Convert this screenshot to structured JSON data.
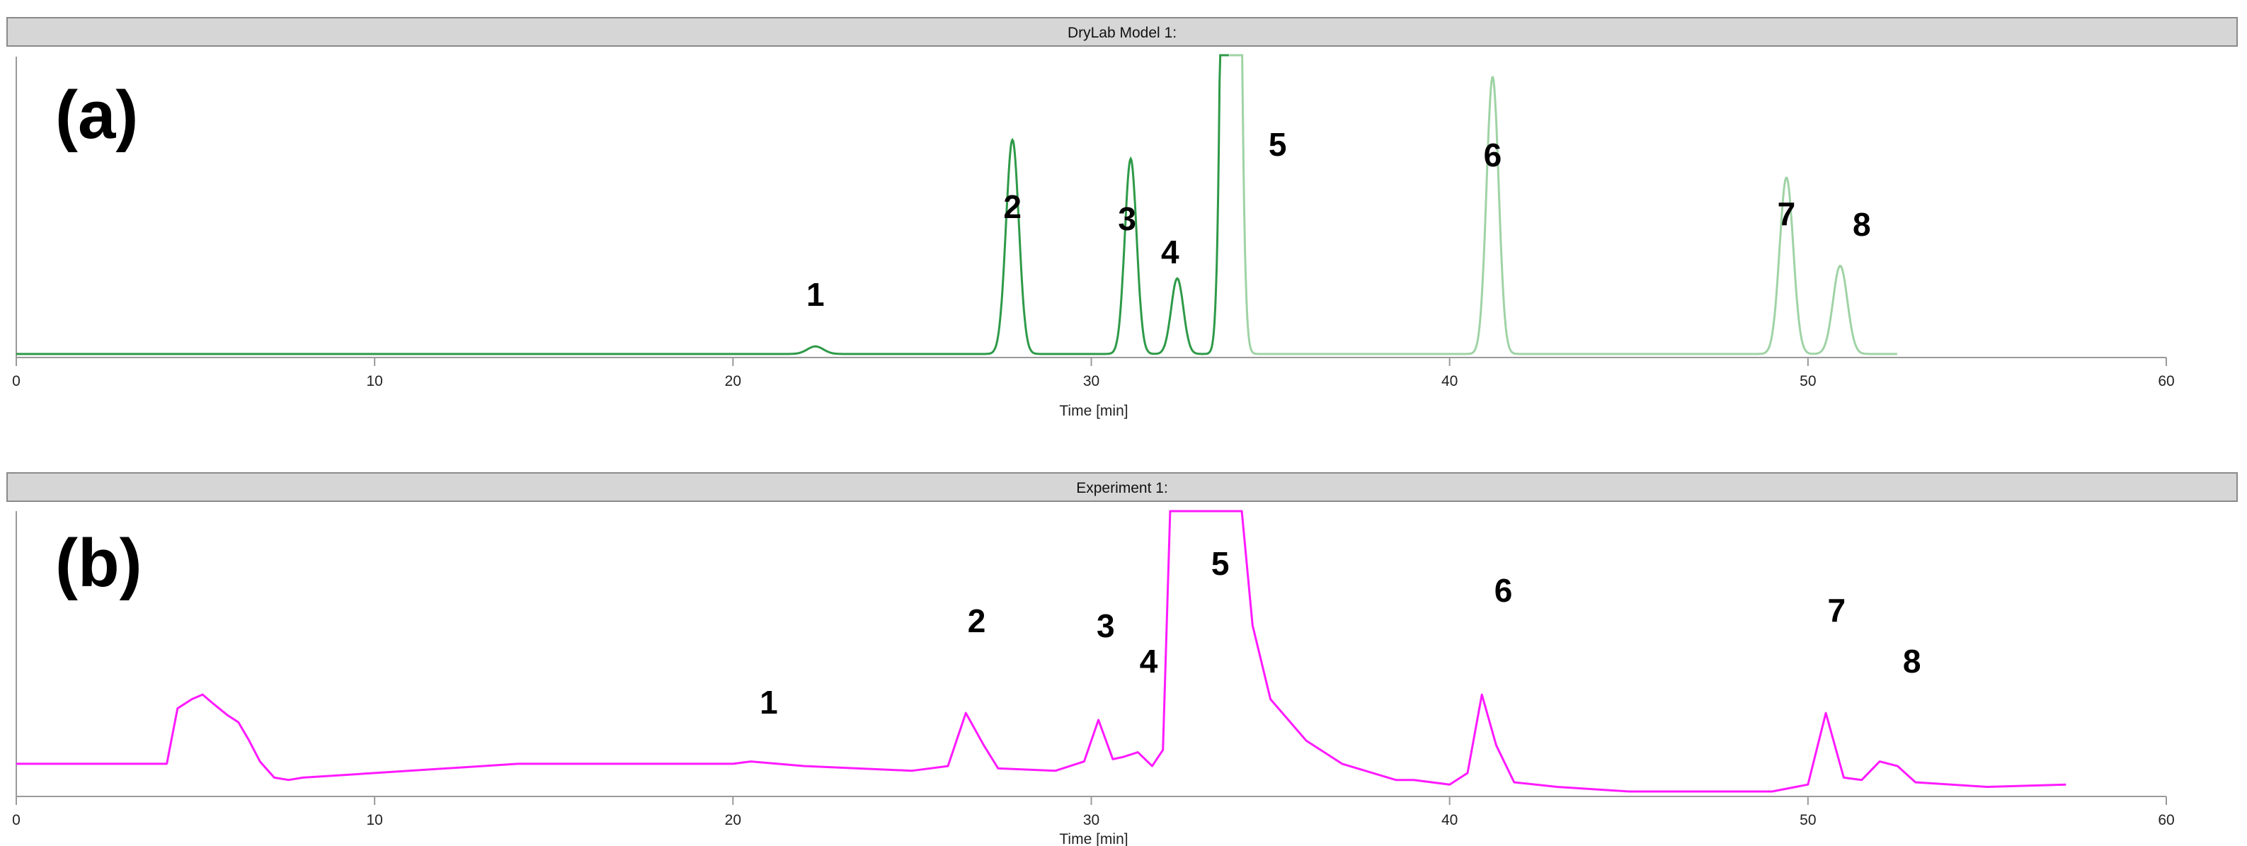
{
  "chart_data": [
    {
      "type": "line",
      "header": "DryLab Model 1:",
      "panel_tag": "(a)",
      "xlabel": "Time [min]",
      "xlim": [
        0,
        60
      ],
      "xticks": [
        0,
        10,
        20,
        30,
        40,
        50,
        60
      ],
      "grid": false,
      "legend": "none",
      "colors": {
        "model_dark": "#2e9a48",
        "model_light": "#9fd3a5"
      },
      "peaks": [
        {
          "label": "1",
          "x": 22.3,
          "height": 0.012,
          "width": 0.45,
          "label_x": 22.3
        },
        {
          "label": "2",
          "x": 27.8,
          "height": 0.34,
          "width": 0.36,
          "label_x": 27.8
        },
        {
          "label": "3",
          "x": 31.1,
          "height": 0.31,
          "width": 0.33,
          "label_x": 31.0
        },
        {
          "label": "4",
          "x": 32.4,
          "height": 0.12,
          "width": 0.34,
          "label_x": 32.2
        },
        {
          "label": "5",
          "x": 33.9,
          "height": 3.2,
          "width": 0.32,
          "label_x": 35.2
        },
        {
          "label": "6",
          "x": 41.2,
          "height": 0.44,
          "width": 0.34,
          "label_x": 41.2
        },
        {
          "label": "7",
          "x": 49.4,
          "height": 0.28,
          "width": 0.38,
          "label_x": 49.4
        },
        {
          "label": "8",
          "x": 50.9,
          "height": 0.14,
          "width": 0.4,
          "label_x": 51.5
        }
      ]
    },
    {
      "type": "line",
      "header": "Experiment 1:",
      "panel_tag": "(b)",
      "xlabel": "Time [min]",
      "xlim": [
        0,
        60
      ],
      "xticks": [
        0,
        10,
        20,
        30,
        40,
        50,
        60
      ],
      "grid": false,
      "legend": "none",
      "colors": {
        "trace": "#ff1aff"
      },
      "trace": {
        "x": [
          0,
          4.2,
          4.5,
          4.9,
          5.2,
          5.5,
          5.9,
          6.2,
          6.5,
          6.8,
          7.2,
          7.6,
          8,
          10,
          14,
          18,
          20,
          20.5,
          22,
          25,
          26,
          26.5,
          27,
          27.4,
          29,
          29.8,
          30.2,
          30.6,
          30.9,
          31.3,
          31.7,
          32,
          32.2,
          34.2,
          34.5,
          35,
          36,
          37,
          38.5,
          39,
          40,
          40.5,
          40.9,
          41.3,
          41.8,
          43,
          44,
          45,
          46,
          49,
          50,
          50.5,
          51,
          51.5,
          52,
          52.5,
          53,
          55,
          57.2
        ],
        "y": [
          0.12,
          0.12,
          0.36,
          0.4,
          0.42,
          0.38,
          0.33,
          0.3,
          0.22,
          0.13,
          0.06,
          0.05,
          0.06,
          0.08,
          0.12,
          0.12,
          0.12,
          0.13,
          0.11,
          0.09,
          0.11,
          0.34,
          0.2,
          0.1,
          0.09,
          0.13,
          0.31,
          0.14,
          0.15,
          0.17,
          0.11,
          0.18,
          1.8,
          1.8,
          0.72,
          0.4,
          0.22,
          0.12,
          0.05,
          0.05,
          0.03,
          0.08,
          0.42,
          0.2,
          0.04,
          0.02,
          0.01,
          0.0,
          0.0,
          0.0,
          0.03,
          0.34,
          0.06,
          0.05,
          0.13,
          0.11,
          0.04,
          0.02,
          0.03
        ]
      },
      "peak_labels": [
        {
          "label": "1",
          "x": 21.0
        },
        {
          "label": "2",
          "x": 26.8
        },
        {
          "label": "3",
          "x": 30.4
        },
        {
          "label": "4",
          "x": 31.6
        },
        {
          "label": "5",
          "x": 33.6
        },
        {
          "label": "6",
          "x": 41.5
        },
        {
          "label": "7",
          "x": 50.8
        },
        {
          "label": "8",
          "x": 52.9
        }
      ]
    }
  ]
}
